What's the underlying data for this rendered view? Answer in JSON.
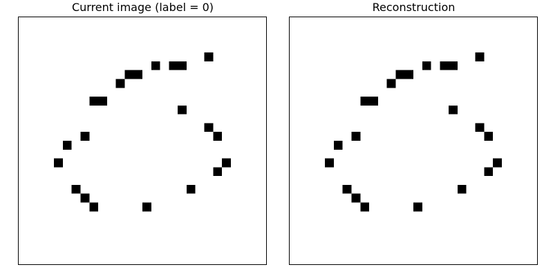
{
  "panels": {
    "current": {
      "title": "Current image (label = 0)"
    },
    "reconstruction": {
      "title": "Reconstruction"
    }
  },
  "grid": {
    "rows": 28,
    "cols": 28,
    "on_color": "#000000",
    "off_color": "#ffffff",
    "current_pixels": [
      [
        4,
        21
      ],
      [
        5,
        15
      ],
      [
        5,
        17
      ],
      [
        5,
        18
      ],
      [
        6,
        12
      ],
      [
        6,
        13
      ],
      [
        7,
        11
      ],
      [
        9,
        8
      ],
      [
        9,
        9
      ],
      [
        10,
        18
      ],
      [
        12,
        21
      ],
      [
        13,
        7
      ],
      [
        13,
        22
      ],
      [
        14,
        5
      ],
      [
        16,
        4
      ],
      [
        16,
        23
      ],
      [
        17,
        22
      ],
      [
        19,
        6
      ],
      [
        19,
        19
      ],
      [
        20,
        7
      ],
      [
        21,
        8
      ],
      [
        21,
        14
      ]
    ],
    "reconstruction_pixels": [
      [
        4,
        21
      ],
      [
        5,
        15
      ],
      [
        5,
        17
      ],
      [
        5,
        18
      ],
      [
        6,
        12
      ],
      [
        6,
        13
      ],
      [
        7,
        11
      ],
      [
        9,
        8
      ],
      [
        9,
        9
      ],
      [
        10,
        18
      ],
      [
        12,
        21
      ],
      [
        13,
        7
      ],
      [
        13,
        22
      ],
      [
        14,
        5
      ],
      [
        16,
        4
      ],
      [
        16,
        23
      ],
      [
        17,
        22
      ],
      [
        19,
        6
      ],
      [
        19,
        19
      ],
      [
        20,
        7
      ],
      [
        21,
        8
      ],
      [
        21,
        14
      ]
    ]
  }
}
